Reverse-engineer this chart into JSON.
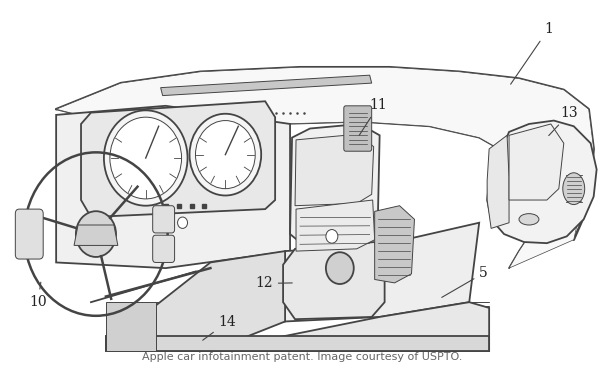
{
  "background_color": "#ffffff",
  "line_color": "#444444",
  "label_color": "#222222",
  "fig_width": 6.04,
  "fig_height": 3.66,
  "dpi": 100,
  "caption": "Apple car infotainment patent. Image courtesy of USPTO.",
  "caption_fontsize": 8,
  "caption_color": "#666666",
  "lw_main": 1.3,
  "lw_thin": 0.7,
  "lw_thick": 1.8
}
